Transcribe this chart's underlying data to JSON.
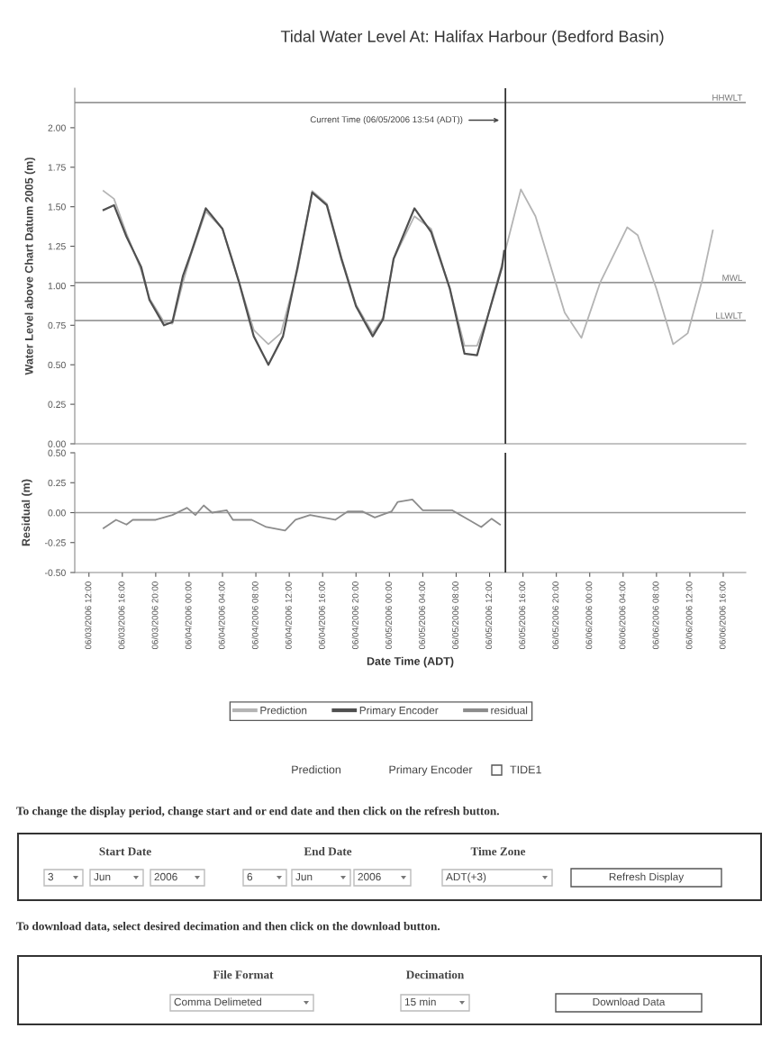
{
  "chart_data": [
    {
      "type": "line",
      "title": "Tidal Water Level At: Halifax Harbour (Bedford Basin)",
      "ylabel": "Water Level above Chart Datum 2005 (m)",
      "xlim": [
        "2006-06-03T10:18",
        "2006-06-06T18:42"
      ],
      "ylim": [
        0,
        2.25
      ],
      "yticks": [
        {
          "value": 0,
          "label": "0.00"
        },
        {
          "value": 0.25,
          "label": "0.25"
        },
        {
          "value": 0.5,
          "label": "0.50"
        },
        {
          "value": 0.75,
          "label": "0.75"
        },
        {
          "value": 1,
          "label": "1.00"
        },
        {
          "value": 1.25,
          "label": "1.25"
        },
        {
          "value": 1.5,
          "label": "1.50"
        },
        {
          "value": 1.75,
          "label": "1.75"
        },
        {
          "value": 2,
          "label": "2.00"
        }
      ],
      "tick_labels": "y",
      "legend": "bottom",
      "marker": "none",
      "line_style": "solid",
      "series": [
        {
          "name": "Prediction",
          "color": "#b4b4b4",
          "x": [
            "2006-06-03T13:45",
            "2006-06-03T15:00",
            "2006-06-03T16:30",
            "2006-06-03T18:15",
            "2006-06-03T19:15",
            "2006-06-03T21:00",
            "2006-06-03T22:00",
            "2006-06-03T23:15",
            "2006-06-04T00:15",
            "2006-06-04T02:00",
            "2006-06-04T04:00",
            "2006-06-04T06:00",
            "2006-06-04T07:45",
            "2006-06-04T09:30",
            "2006-06-04T11:00",
            "2006-06-04T13:00",
            "2006-06-04T14:45",
            "2006-06-04T16:30",
            "2006-06-04T18:15",
            "2006-06-04T20:00",
            "2006-06-04T22:00",
            "2006-06-04T23:15",
            "2006-06-05T00:30",
            "2006-06-05T03:00",
            "2006-06-05T05:00",
            "2006-06-05T07:15",
            "2006-06-05T09:00",
            "2006-06-05T10:30",
            "2006-06-05T11:45",
            "2006-06-05T13:30",
            "2006-06-05T15:45",
            "2006-06-05T17:30",
            "2006-06-05T21:00",
            "2006-06-05T23:00",
            "2006-06-06T01:15",
            "2006-06-06T04:30",
            "2006-06-06T05:45",
            "2006-06-06T08:00",
            "2006-06-06T10:00",
            "2006-06-06T11:45",
            "2006-06-06T13:30",
            "2006-06-06T14:45"
          ],
          "values": [
            1.6,
            1.55,
            1.33,
            1.1,
            0.92,
            0.77,
            0.76,
            1.02,
            1.2,
            1.47,
            1.36,
            1.02,
            0.72,
            0.63,
            0.7,
            1.1,
            1.6,
            1.52,
            1.18,
            0.88,
            0.7,
            0.8,
            1.17,
            1.44,
            1.36,
            0.98,
            0.62,
            0.62,
            0.8,
            1.14,
            1.61,
            1.44,
            0.83,
            0.67,
            1.02,
            1.37,
            1.32,
            0.98,
            0.63,
            0.7,
            1.04,
            1.35
          ]
        },
        {
          "name": "Primary Encoder",
          "color": "#505050",
          "x": [
            "2006-06-03T13:45",
            "2006-06-03T15:00",
            "2006-06-03T16:30",
            "2006-06-03T18:15",
            "2006-06-03T19:15",
            "2006-06-03T21:00",
            "2006-06-03T22:00",
            "2006-06-03T23:15",
            "2006-06-04T00:15",
            "2006-06-04T02:00",
            "2006-06-04T04:00",
            "2006-06-04T06:00",
            "2006-06-04T07:45",
            "2006-06-04T09:30",
            "2006-06-04T11:15",
            "2006-06-04T13:00",
            "2006-06-04T14:45",
            "2006-06-04T16:30",
            "2006-06-04T18:15",
            "2006-06-04T20:00",
            "2006-06-04T22:00",
            "2006-06-04T23:15",
            "2006-06-05T00:30",
            "2006-06-05T03:00",
            "2006-06-05T05:00",
            "2006-06-05T07:15",
            "2006-06-05T09:00",
            "2006-06-05T10:30",
            "2006-06-05T11:45",
            "2006-06-05T13:30",
            "2006-06-05T13:45"
          ],
          "values": [
            1.48,
            1.51,
            1.31,
            1.12,
            0.91,
            0.75,
            0.77,
            1.06,
            1.21,
            1.49,
            1.36,
            1.02,
            0.68,
            0.5,
            0.68,
            1.12,
            1.59,
            1.51,
            1.17,
            0.87,
            0.68,
            0.79,
            1.17,
            1.49,
            1.34,
            0.98,
            0.57,
            0.56,
            0.8,
            1.12,
            1.22
          ]
        }
      ],
      "ref_lines": [
        {
          "axis": "y",
          "value": 2.16,
          "label": "HHWLT",
          "color": "#999999"
        },
        {
          "axis": "y",
          "value": 1.02,
          "label": "MWL",
          "color": "#999999"
        },
        {
          "axis": "y",
          "value": 0.78,
          "label": "LLWLT",
          "color": "#999999"
        },
        {
          "axis": "x",
          "value": "2006-06-05T13:54",
          "label": "Current Time (06/05/2006 13:54 (ADT))",
          "color": "#333333"
        }
      ]
    },
    {
      "type": "line",
      "ylabel": "Residual (m)",
      "xlabel": "Date Time (ADT)",
      "xlim": [
        "2006-06-03T10:18",
        "2006-06-06T18:42"
      ],
      "ylim": [
        -0.5,
        0.5
      ],
      "yticks": [
        {
          "value": -0.5,
          "label": "-0.50"
        },
        {
          "value": -0.25,
          "label": "-0.25"
        },
        {
          "value": 0,
          "label": "0.00"
        },
        {
          "value": 0.25,
          "label": "0.25"
        },
        {
          "value": 0.5,
          "label": "0.50"
        }
      ],
      "xticks": [
        {
          "value": "2006-06-03T12:00",
          "label": "06/03/2006 12:00"
        },
        {
          "value": "2006-06-03T16:00",
          "label": "06/03/2006 16:00"
        },
        {
          "value": "2006-06-03T20:00",
          "label": "06/03/2006 20:00"
        },
        {
          "value": "2006-06-04T00:00",
          "label": "06/04/2006 00:00"
        },
        {
          "value": "2006-06-04T04:00",
          "label": "06/04/2006 04:00"
        },
        {
          "value": "2006-06-04T08:00",
          "label": "06/04/2006 08:00"
        },
        {
          "value": "2006-06-04T12:00",
          "label": "06/04/2006 12:00"
        },
        {
          "value": "2006-06-04T16:00",
          "label": "06/04/2006 16:00"
        },
        {
          "value": "2006-06-04T20:00",
          "label": "06/04/2006 20:00"
        },
        {
          "value": "2006-06-05T00:00",
          "label": "06/05/2006 00:00"
        },
        {
          "value": "2006-06-05T04:00",
          "label": "06/05/2006 04:00"
        },
        {
          "value": "2006-06-05T08:00",
          "label": "06/05/2006 08:00"
        },
        {
          "value": "2006-06-05T12:00",
          "label": "06/05/2006 12:00"
        },
        {
          "value": "2006-06-05T16:00",
          "label": "06/05/2006 16:00"
        },
        {
          "value": "2006-06-05T20:00",
          "label": "06/05/2006 20:00"
        },
        {
          "value": "2006-06-06T00:00",
          "label": "06/06/2006 00:00"
        },
        {
          "value": "2006-06-06T04:00",
          "label": "06/06/2006 04:00"
        },
        {
          "value": "2006-06-06T08:00",
          "label": "06/06/2006 08:00"
        },
        {
          "value": "2006-06-06T12:00",
          "label": "06/06/2006 12:00"
        },
        {
          "value": "2006-06-06T16:00",
          "label": "06/06/2006 16:00"
        }
      ],
      "legend": "bottom",
      "marker": "none",
      "line_style": "solid",
      "series": [
        {
          "name": "residual",
          "color": "#8c8c8c",
          "x": [
            "2006-06-03T13:45",
            "2006-06-03T15:15",
            "2006-06-03T16:30",
            "2006-06-03T17:15",
            "2006-06-03T20:00",
            "2006-06-03T22:00",
            "2006-06-03T23:45",
            "2006-06-04T00:45",
            "2006-06-04T01:45",
            "2006-06-04T02:45",
            "2006-06-04T04:30",
            "2006-06-04T05:15",
            "2006-06-04T07:30",
            "2006-06-04T09:15",
            "2006-06-04T11:30",
            "2006-06-04T12:45",
            "2006-06-04T14:30",
            "2006-06-04T17:30",
            "2006-06-04T19:00",
            "2006-06-04T20:45",
            "2006-06-04T22:15",
            "2006-06-05T00:15",
            "2006-06-05T01:00",
            "2006-06-05T02:45",
            "2006-06-05T04:00",
            "2006-06-05T07:30",
            "2006-06-05T09:00",
            "2006-06-05T11:00",
            "2006-06-05T12:15",
            "2006-06-05T13:15"
          ],
          "values": [
            -0.13,
            -0.06,
            -0.1,
            -0.06,
            -0.06,
            -0.02,
            0.04,
            -0.02,
            0.06,
            0.0,
            0.02,
            -0.06,
            -0.06,
            -0.12,
            -0.15,
            -0.06,
            -0.02,
            -0.06,
            0.01,
            0.01,
            -0.04,
            0.01,
            0.09,
            0.11,
            0.02,
            0.02,
            -0.04,
            -0.12,
            -0.05,
            -0.1
          ]
        }
      ],
      "ref_lines": [
        {
          "axis": "y",
          "value": 0,
          "color": "#999999"
        },
        {
          "axis": "x",
          "value": "2006-06-05T13:54",
          "color": "#333333"
        }
      ]
    },
    {
      "type": "other",
      "annotations": [
        "Prediction",
        "Primary Encoder",
        "TIDE1",
        "To change the display period, change start and or end date and then click on the refresh button.",
        "Start Date",
        "End Date",
        "Time Zone",
        "3",
        "Jun",
        "2006",
        "6",
        "Jun",
        "2006",
        "ADT(+3)",
        "Refresh Display",
        "To download data, select desired decimation and then click on the download button.",
        "File Format",
        "Decimation",
        "Comma Delimeted",
        "15 min",
        "Download Data"
      ]
    }
  ]
}
